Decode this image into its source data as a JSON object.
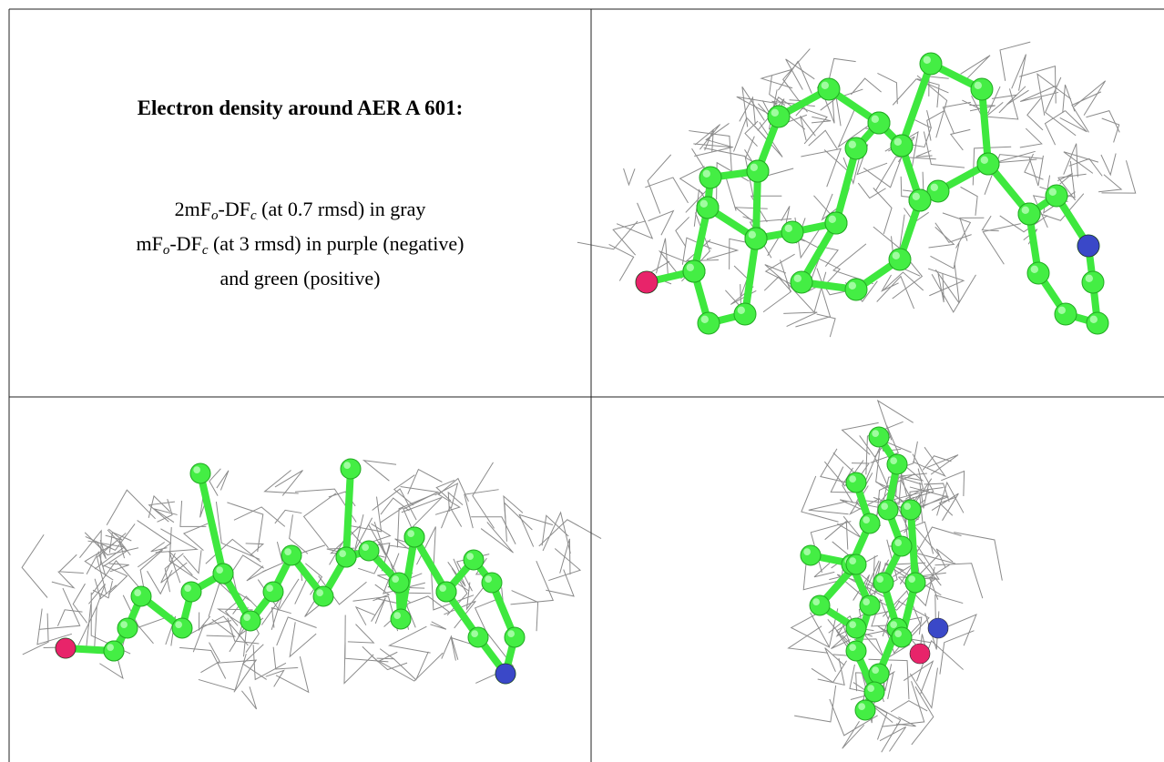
{
  "title": "Electron density around AER A 601:",
  "legend": [
    [
      "2mF",
      "o",
      "-DF",
      "c",
      " (at 0.7 rmsd) in gray"
    ],
    [
      "mF",
      "o",
      "-DF",
      "c",
      " (at 3 rmsd) in purple (negative)"
    ],
    [
      "and green (positive)"
    ]
  ]
}
